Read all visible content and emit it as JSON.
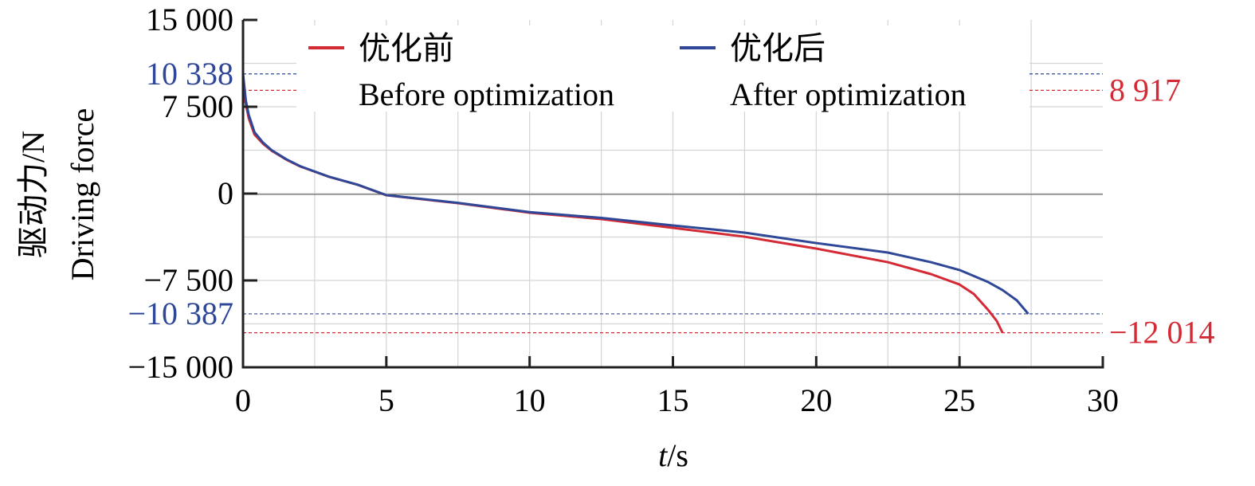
{
  "chart_data": {
    "type": "line",
    "title": "",
    "xlabel": "t/s",
    "xlabel_italic_part": "t",
    "xlabel_rest": "/s",
    "ylabel_cn": "驱动力/N",
    "ylabel_en": "Driving force",
    "xlim": [
      0,
      30
    ],
    "ylim": [
      -15000,
      15000
    ],
    "xticks": [
      0,
      5,
      10,
      15,
      20,
      25,
      30
    ],
    "xtick_labels": [
      "0",
      "5",
      "10",
      "15",
      "20",
      "25",
      "30"
    ],
    "yticks": [
      15000,
      7500,
      0,
      -7500,
      -15000
    ],
    "ytick_labels": [
      "15 000",
      "7 500",
      "0",
      "−7 500",
      "−15 000"
    ],
    "grid": true,
    "legend_placement": "top",
    "series": [
      {
        "name_cn": "优化前",
        "name_en": "Before optimization",
        "color": "#d42a35",
        "x": [
          0,
          0.2,
          0.4,
          0.7,
          1,
          1.5,
          2,
          3,
          4,
          5,
          7.5,
          10,
          12.5,
          15,
          17.5,
          20,
          22.5,
          24,
          25,
          25.5,
          26,
          26.3,
          26.5
        ],
        "y": [
          8917,
          6500,
          5100,
          4300,
          3700,
          2950,
          2340,
          1450,
          760,
          -140,
          -830,
          -1650,
          -2200,
          -2960,
          -3720,
          -4750,
          -5920,
          -6950,
          -7850,
          -8670,
          -10050,
          -11000,
          -12014
        ]
      },
      {
        "name_cn": "优化后",
        "name_en": "After optimization",
        "color": "#2f4797",
        "x": [
          0,
          0.1,
          0.2,
          0.4,
          0.7,
          1,
          1.5,
          2,
          3,
          4,
          5,
          7.5,
          10,
          12.5,
          15,
          17.5,
          20,
          22.5,
          24,
          25,
          26,
          26.5,
          27,
          27.4
        ],
        "y": [
          10338,
          8000,
          6800,
          5300,
          4400,
          3750,
          2980,
          2360,
          1460,
          770,
          -130,
          -800,
          -1600,
          -2100,
          -2750,
          -3370,
          -4270,
          -5090,
          -5920,
          -6600,
          -7640,
          -8330,
          -9220,
          -10387
        ]
      }
    ],
    "annotations": [
      {
        "text": "10 338",
        "value": 10338,
        "color": "#2f4797",
        "side": "left"
      },
      {
        "text": "−10 387",
        "value": -10387,
        "color": "#2f4797",
        "side": "left"
      },
      {
        "text": "8 917",
        "value": 8917,
        "color": "#d42a35",
        "side": "right"
      },
      {
        "text": "−12 014",
        "value": -12014,
        "color": "#d42a35",
        "side": "right"
      }
    ]
  }
}
